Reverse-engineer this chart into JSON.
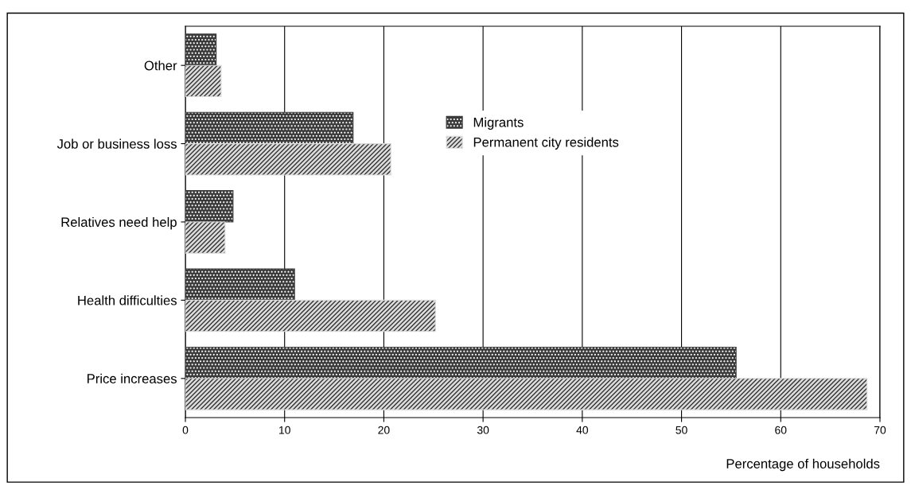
{
  "chart_data": {
    "type": "bar",
    "orientation": "horizontal",
    "xlabel": "Percentage of households",
    "categories": [
      "Other",
      "Job or business loss",
      "Relatives need help",
      "Health difficulties",
      "Price increases"
    ],
    "series": [
      {
        "name": "Migrants",
        "color": "#3a3a3a",
        "values": [
          3.1,
          16.9,
          4.8,
          11.0,
          55.5
        ]
      },
      {
        "name": "Permanent city residents",
        "color": "#dcdcdc",
        "values": [
          3.6,
          20.7,
          4.0,
          25.2,
          68.7
        ]
      }
    ],
    "xlim": [
      0,
      70
    ],
    "xticks": [
      0,
      10,
      20,
      30,
      40,
      50,
      60,
      70
    ],
    "grid": "x",
    "legend": "top"
  }
}
